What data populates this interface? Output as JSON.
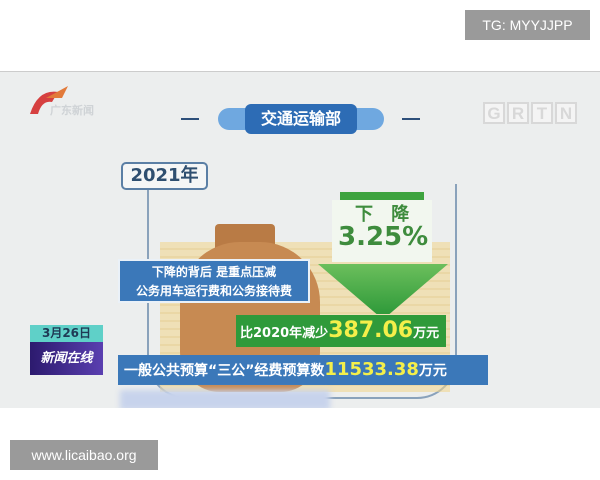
{
  "watermark_top": "TG: MYYJJPP",
  "watermark_bottom": "www.licaibao.org",
  "broadcast": {
    "channel_logo": "广东新闻",
    "station_logo": [
      "G",
      "R",
      "T",
      "N"
    ],
    "date": "3月26日",
    "program": "新闻在线"
  },
  "infographic": {
    "title": "交通运输部",
    "year": "2021年",
    "bubble_line1": "下降的背后  是重点压减",
    "bubble_line2": "公务用车运行费和公务接待费",
    "down_label": "下 降",
    "down_percent": "3.25%",
    "reduce_prefix": "比2020年减少",
    "reduce_value": "387.06",
    "reduce_unit": "万元",
    "budget_prefix": "一般公共预算“三公”经费预算数",
    "budget_value": "11533.38",
    "budget_unit": "万元"
  },
  "colors": {
    "blue": "#3b78b9",
    "green": "#2f9a3a",
    "yellow": "#f4ef4a"
  }
}
